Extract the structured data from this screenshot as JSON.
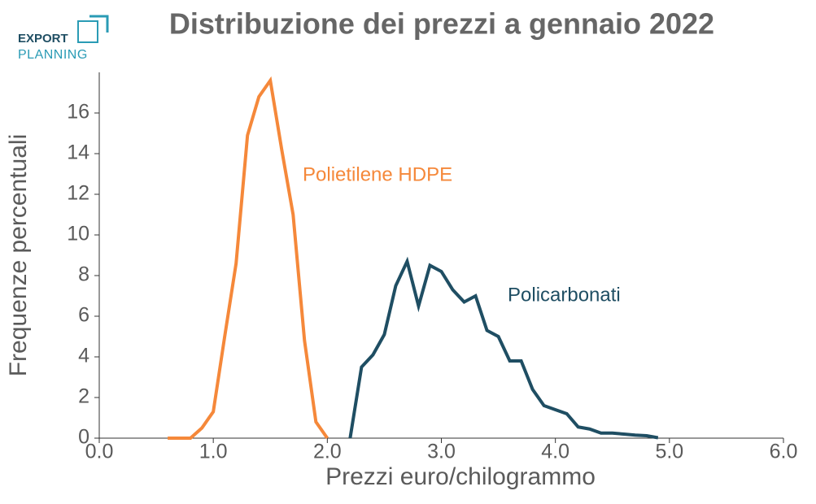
{
  "logo": {
    "line1": "EXPORT",
    "line2": "PLANNING"
  },
  "chart_data": {
    "type": "line",
    "title": "Distribuzione dei prezzi a gennaio 2022",
    "x_label": "Prezzi euro/chilogrammo",
    "y_label": "Frequenze percentuali",
    "xlim": [
      0,
      6
    ],
    "xticks": [
      {
        "value": 0,
        "label": "0.0"
      },
      {
        "value": 1,
        "label": "1.0"
      },
      {
        "value": 2,
        "label": "2.0"
      },
      {
        "value": 3,
        "label": "3.0"
      },
      {
        "value": 4,
        "label": "4.0"
      },
      {
        "value": 5,
        "label": "5.0"
      },
      {
        "value": 6,
        "label": "6.0"
      }
    ],
    "ylim": [
      0,
      18
    ],
    "yticks": [
      0,
      2,
      4,
      6,
      8,
      10,
      12,
      14,
      16
    ],
    "series": [
      {
        "name": "Polietilene HDPE",
        "color": "#f5883a",
        "x": [
          0.6,
          0.7,
          0.8,
          0.9,
          1.0,
          1.1,
          1.2,
          1.3,
          1.4,
          1.5,
          1.6,
          1.7,
          1.8,
          1.9,
          2.0
        ],
        "values": [
          0,
          0,
          0,
          0.5,
          1.3,
          5.0,
          8.6,
          14.9,
          16.8,
          17.6,
          14.2,
          11.0,
          4.8,
          0.8,
          0
        ]
      },
      {
        "name": "Policarbonati",
        "color": "#1f4e63",
        "x": [
          2.2,
          2.3,
          2.4,
          2.5,
          2.6,
          2.7,
          2.8,
          2.9,
          3.0,
          3.1,
          3.2,
          3.3,
          3.4,
          3.5,
          3.6,
          3.7,
          3.8,
          3.9,
          4.0,
          4.1,
          4.2,
          4.3,
          4.4,
          4.5,
          4.6,
          4.7,
          4.8,
          4.9
        ],
        "values": [
          0,
          3.5,
          4.1,
          5.1,
          7.5,
          8.7,
          6.5,
          8.5,
          8.2,
          7.3,
          6.7,
          7.0,
          5.3,
          5.0,
          3.8,
          3.8,
          2.4,
          1.6,
          1.4,
          1.2,
          0.55,
          0.45,
          0.25,
          0.25,
          0.2,
          0.15,
          0.12,
          0.02
        ]
      }
    ]
  }
}
